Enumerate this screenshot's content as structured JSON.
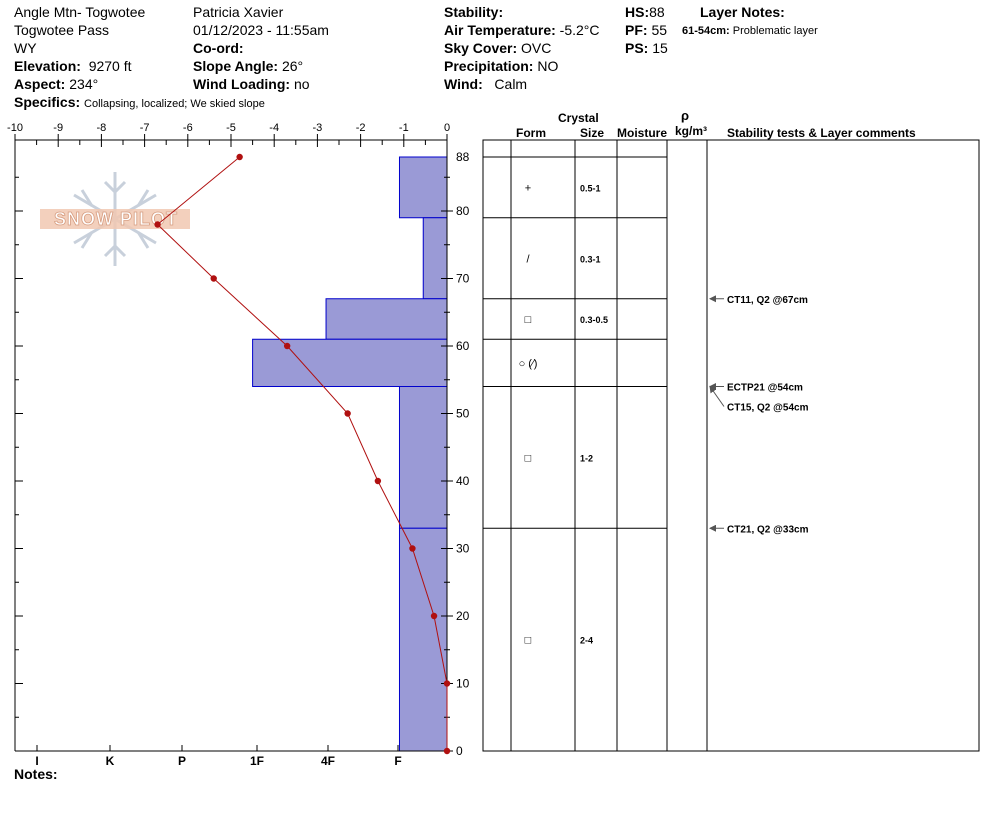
{
  "header": {
    "location": "Angle Mtn- Togwotee",
    "area": "Togwotee Pass",
    "state": "WY",
    "elevation_label": "Elevation:",
    "elevation": "9270 ft",
    "aspect_label": "Aspect:",
    "aspect": "234°",
    "observer": "Patricia Xavier",
    "datetime": "01/12/2023 - 11:55am",
    "coord_label": "Co-ord:",
    "slope_label": "Slope Angle:",
    "slope": "26°",
    "wind_loading_label": "Wind Loading:",
    "wind_loading": "no",
    "stability_label": "Stability:",
    "air_temp_label": "Air Temperature:",
    "air_temp": "-5.2°C",
    "sky_label": "Sky Cover:",
    "sky": "OVC",
    "precip_label": "Precipitation:",
    "precip": "NO",
    "wind_label": "Wind:",
    "wind": "Calm",
    "hs_label": "HS:",
    "hs": "88",
    "pf_label": "PF:",
    "pf": "55",
    "ps_label": "PS:",
    "ps": "15",
    "layer_notes_label": "Layer Notes:",
    "layer_note_range": "61-54cm:",
    "layer_note_text": "Problematic layer",
    "specifics_label": "Specifics:",
    "specifics": "Collapsing, localized;  We skied slope"
  },
  "watermark": "SNOW PILOT",
  "notes_label": "Notes:",
  "table_headers": {
    "crystal": "Crystal",
    "form": "Form",
    "size": "Size",
    "moisture": "Moisture",
    "rho": "ρ",
    "density_unit": "kg/m³",
    "comments": "Stability tests & Layer comments"
  },
  "chart_data": {
    "type": "snow_profile",
    "temperature_axis": {
      "ticks": [
        "-10",
        "-9",
        "-8",
        "-7",
        "-6",
        "-5",
        "-4",
        "-3",
        "-2",
        "-1",
        "0"
      ],
      "range": [
        -10,
        0
      ]
    },
    "depth_axis": {
      "ticks": [
        "88",
        "80",
        "70",
        "60",
        "50",
        "40",
        "30",
        "20",
        "10",
        "0"
      ],
      "range": [
        0,
        88
      ]
    },
    "hardness_axis": {
      "ticks": [
        "I",
        "K",
        "P",
        "1F",
        "4F",
        "F"
      ]
    },
    "temperature_profile": [
      {
        "depth": 88,
        "temp": -4.8
      },
      {
        "depth": 78,
        "temp": -6.7
      },
      {
        "depth": 70,
        "temp": -5.4
      },
      {
        "depth": 60,
        "temp": -3.7
      },
      {
        "depth": 50,
        "temp": -2.3
      },
      {
        "depth": 40,
        "temp": -1.6
      },
      {
        "depth": 30,
        "temp": -0.8
      },
      {
        "depth": 20,
        "temp": -0.3
      },
      {
        "depth": 10,
        "temp": 0
      },
      {
        "depth": 0,
        "temp": 0
      }
    ],
    "hardness_layers": [
      {
        "top": 88,
        "bottom": 79,
        "hardness": -1.1
      },
      {
        "top": 79,
        "bottom": 67,
        "hardness": -0.55
      },
      {
        "top": 67,
        "bottom": 61,
        "hardness": -2.8
      },
      {
        "top": 61,
        "bottom": 54,
        "hardness": -4.5
      },
      {
        "top": 54,
        "bottom": 33,
        "hardness": -1.1
      },
      {
        "top": 33,
        "bottom": 0,
        "hardness": -1.1
      }
    ],
    "layers": [
      {
        "top": 88,
        "bottom": 79,
        "form": "+",
        "size": "0.5-1"
      },
      {
        "top": 79,
        "bottom": 67,
        "form": "/",
        "size": "0.3-1"
      },
      {
        "top": 67,
        "bottom": 61,
        "form": "□",
        "size": "0.3-0.5"
      },
      {
        "top": 61,
        "bottom": 54,
        "form": "○ (⁄)",
        "size": ""
      },
      {
        "top": 54,
        "bottom": 33,
        "form": "□",
        "size": "1-2"
      },
      {
        "top": 33,
        "bottom": 0,
        "form": "□",
        "size": "2-4"
      }
    ],
    "tests": [
      {
        "label": "CT11, Q2 @67cm",
        "depth": 67
      },
      {
        "label": "ECTP21 @54cm",
        "depth": 54
      },
      {
        "label": "CT15, Q2 @54cm",
        "depth": 54
      },
      {
        "label": "CT21, Q2 @33cm",
        "depth": 33
      }
    ],
    "colors": {
      "hardness_fill": "#9a9ad6",
      "hardness_edge": "#0000cc",
      "temperature": "#b01010"
    }
  }
}
